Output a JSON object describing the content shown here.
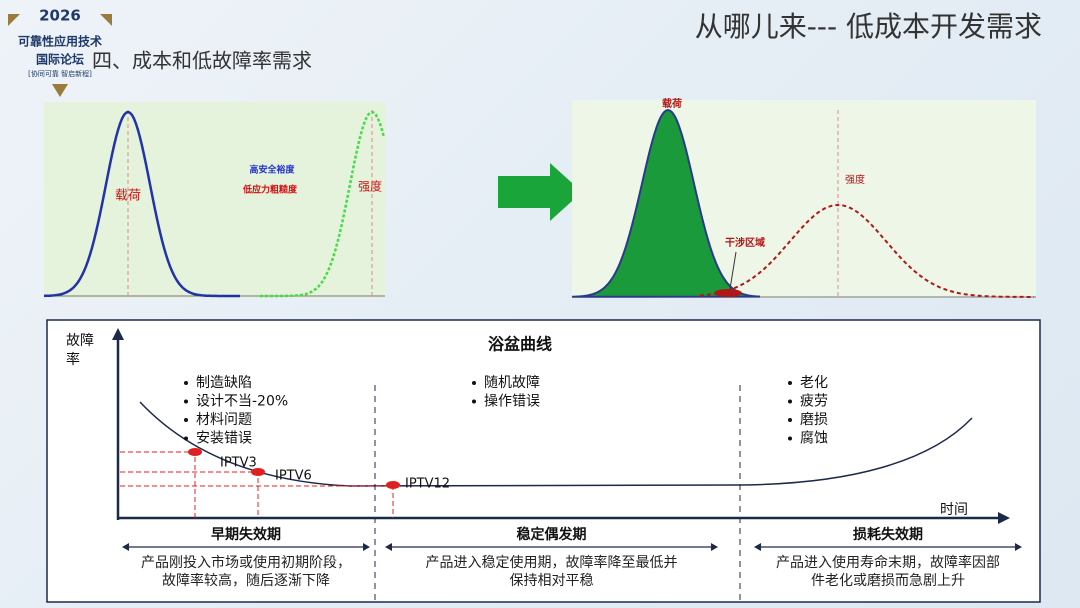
{
  "logo": {
    "year": "2026",
    "name": "可靠性应用技术",
    "sub": "国际论坛",
    "slogan": "[协同可靠 智启新程]"
  },
  "header": {
    "section": "四、成本和低故障率需求",
    "title": "从哪儿来--- 低成本开发需求"
  },
  "diagrams": {
    "left": {
      "load": "载荷",
      "strength": "强度",
      "note1": "高安全裕度",
      "note2": "低应力粗糙度"
    },
    "right": {
      "load": "载荷",
      "strength": "强度",
      "interference": "干涉区域"
    }
  },
  "bathtub": {
    "title": "浴盆曲线",
    "y_label": "故障率",
    "x_label": "时间",
    "bullets": [
      [
        "制造缺陷",
        "设计不当-20%",
        "材料问题",
        "安装错误"
      ],
      [
        "随机故障",
        "操作错误"
      ],
      [
        "老化",
        "疲劳",
        "磨损",
        "腐蚀"
      ]
    ],
    "points": [
      "IPTV3",
      "IPTV6",
      "IPTV12"
    ],
    "phases": [
      {
        "name": "早期失效期",
        "description": [
          "产品刚投入市场或使用初期阶段，",
          "故障率较高，随后逐渐下降"
        ]
      },
      {
        "name": "稳定偶发期",
        "description": [
          "产品进入稳定使用期，故障率降至最低并",
          "保持相对平稳"
        ]
      },
      {
        "name": "损耗失效期",
        "description": [
          "产品进入使用寿命末期，故障率因部",
          "件老化或磨损而急剧上升"
        ]
      }
    ]
  }
}
